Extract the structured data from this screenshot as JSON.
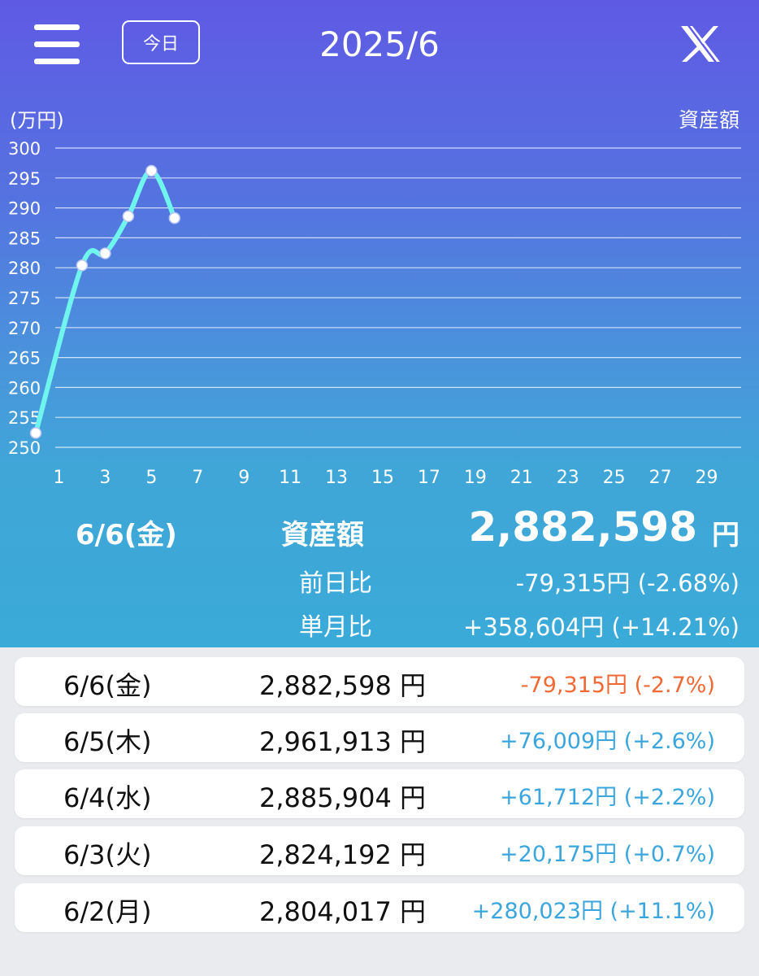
{
  "header": {
    "today_label": "今日",
    "month_title": "2025/6",
    "menu_icon": "hamburger-menu-icon",
    "share_icon": "x-logo-icon"
  },
  "colors": {
    "gradient_top": "#5f5ae4",
    "gradient_bottom": "#3aaad8",
    "line": "#6ff5ee",
    "negative": "#f06a36",
    "positive": "#3aa6dd"
  },
  "chart_data": {
    "type": "line",
    "unit_label": "(万円)",
    "series_label": "資産額",
    "ylim": [
      250,
      300
    ],
    "yticks": [
      250,
      255,
      260,
      265,
      270,
      275,
      280,
      285,
      290,
      295,
      300
    ],
    "xlim": [
      0,
      30
    ],
    "xticks": [
      1,
      3,
      5,
      7,
      9,
      11,
      13,
      15,
      17,
      19,
      21,
      23,
      25,
      27,
      29
    ],
    "grid": true,
    "x": [
      0,
      2,
      3,
      4,
      5,
      6
    ],
    "y": [
      252.4,
      280.4,
      282.4,
      288.6,
      296.2,
      288.3
    ]
  },
  "summary": {
    "date": "6/6(金)",
    "label": "資産額",
    "amount": "2,882,598",
    "yen": "円",
    "prev_day_label": "前日比",
    "prev_day_value": "-79,315円 (-2.68%)",
    "month_label": "単月比",
    "month_value": "+358,604円 (+14.21%)"
  },
  "rows": [
    {
      "date": "6/6(金)",
      "amount": "2,882,598 円",
      "change": "-79,315円 (-2.7%)"
    },
    {
      "date": "6/5(木)",
      "amount": "2,961,913 円",
      "change": "+76,009円 (+2.6%)"
    },
    {
      "date": "6/4(水)",
      "amount": "2,885,904 円",
      "change": "+61,712円 (+2.2%)"
    },
    {
      "date": "6/3(火)",
      "amount": "2,824,192 円",
      "change": "+20,175円 (+0.7%)"
    },
    {
      "date": "6/2(月)",
      "amount": "2,804,017 円",
      "change": "+280,023円 (+11.1%)"
    }
  ]
}
